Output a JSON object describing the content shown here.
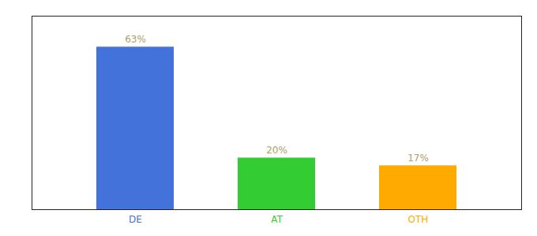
{
  "chart_data": {
    "type": "bar",
    "categories": [
      "DE",
      "AT",
      "OTH"
    ],
    "values": [
      63,
      20,
      17
    ],
    "colors": [
      "#4472db",
      "#33cc33",
      "#ffaa00"
    ],
    "ylim": [
      0,
      75
    ],
    "data_labels": true,
    "value_labels": [
      "63%",
      "20%",
      "17%"
    ],
    "tick_labels": "x"
  }
}
